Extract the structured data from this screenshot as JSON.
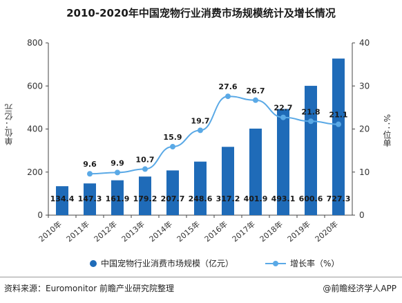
{
  "title": "2010-2020年中国宠物行业消费市场规模统计及增长情况",
  "ylabel_left": "单位：亿元",
  "ylabel_right": "%：位单",
  "footer": {
    "source": "资料来源：Euromonitor 前瞻产业研究院整理",
    "brand": "@前瞻经济学人APP"
  },
  "colors": {
    "bar": "#1f6bb8",
    "line": "#5aa9e6"
  },
  "chart_data": {
    "type": "bar",
    "categories": [
      "2010年",
      "2011年",
      "2012年",
      "2013年",
      "2014年",
      "2015年",
      "2016年",
      "2017年",
      "2018年",
      "2019年",
      "2020年"
    ],
    "series": [
      {
        "name": "中国宠物行业消费市场规模（亿元）",
        "type": "bar",
        "axis": "left",
        "values": [
          134.4,
          147.3,
          161.9,
          179.2,
          207.7,
          248.6,
          317.2,
          401.9,
          493.1,
          600.6,
          727.3
        ]
      },
      {
        "name": "增长率（%）",
        "type": "line",
        "axis": "right",
        "values": [
          null,
          9.6,
          9.9,
          10.7,
          15.9,
          19.7,
          27.6,
          26.7,
          22.7,
          21.8,
          21.1
        ]
      }
    ],
    "ylim_left": [
      0,
      800
    ],
    "yticks_left": [
      0,
      200,
      400,
      600,
      800
    ],
    "ylim_right": [
      0,
      40
    ],
    "yticks_right": [
      0,
      10,
      20,
      30,
      40
    ],
    "grid": false,
    "legend": "bottom"
  }
}
